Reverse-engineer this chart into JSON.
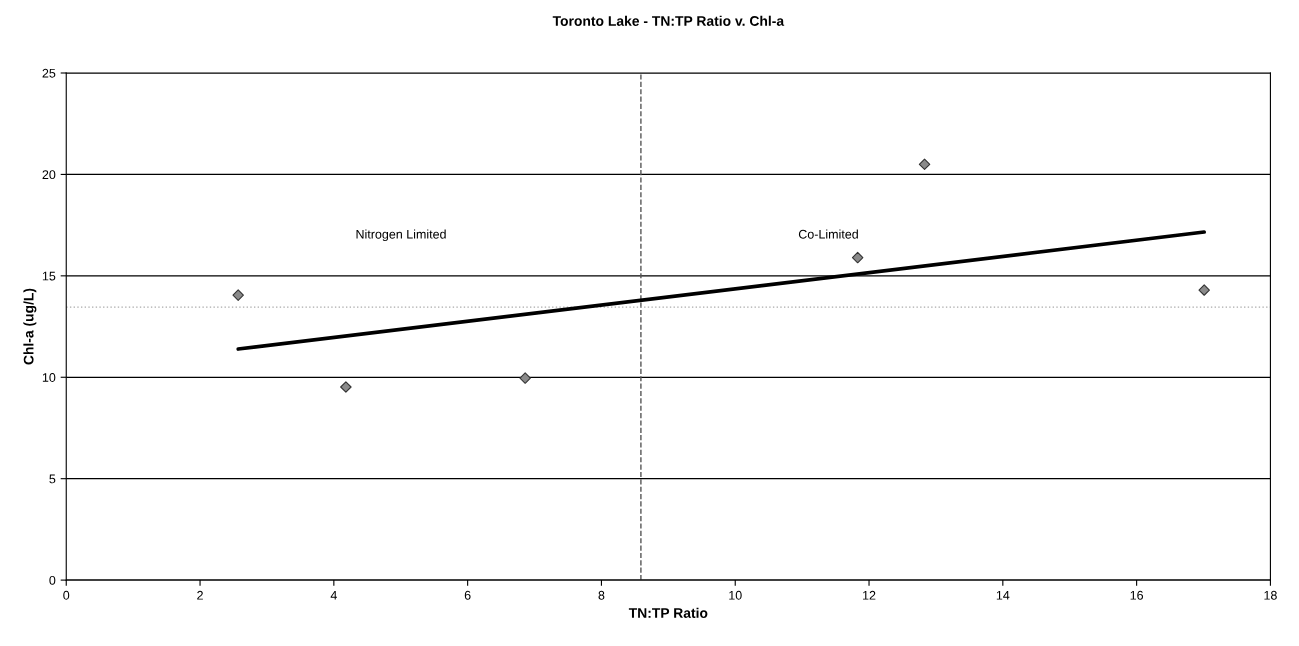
{
  "chart_data": {
    "type": "scatter",
    "title": "Toronto Lake - TN:TP Ratio v. Chl-a",
    "xlabel": "TN:TP Ratio",
    "ylabel": "Chl-a (ug/L)",
    "grid": "y",
    "xlim": [
      0,
      18
    ],
    "xticks": [
      0,
      2,
      4,
      6,
      8,
      10,
      12,
      14,
      16,
      18
    ],
    "ylim": [
      0,
      25
    ],
    "yticks": [
      0,
      5,
      10,
      15,
      20,
      25
    ],
    "series": [
      {
        "marker": "diamond",
        "color": "#8a8a8a",
        "x": [
          2.57,
          4.18,
          6.86,
          11.83,
          12.83,
          17.01
        ],
        "values": [
          14.05,
          9.52,
          9.96,
          15.9,
          20.5,
          14.3
        ]
      },
      {
        "type": "line",
        "marker": "none",
        "color": "#000000",
        "x": [
          2.57,
          17.01
        ],
        "values": [
          11.39,
          17.16
        ]
      }
    ],
    "ref_lines": [
      {
        "axis": "x",
        "value": 8.59,
        "color": "#555555",
        "line_style": "dashed"
      },
      {
        "axis": "y",
        "value": 13.46,
        "color": "#aaaaaa",
        "line_style": "dotted"
      }
    ],
    "annotations": [
      "Nitrogen Limited",
      "Co-Limited"
    ]
  }
}
